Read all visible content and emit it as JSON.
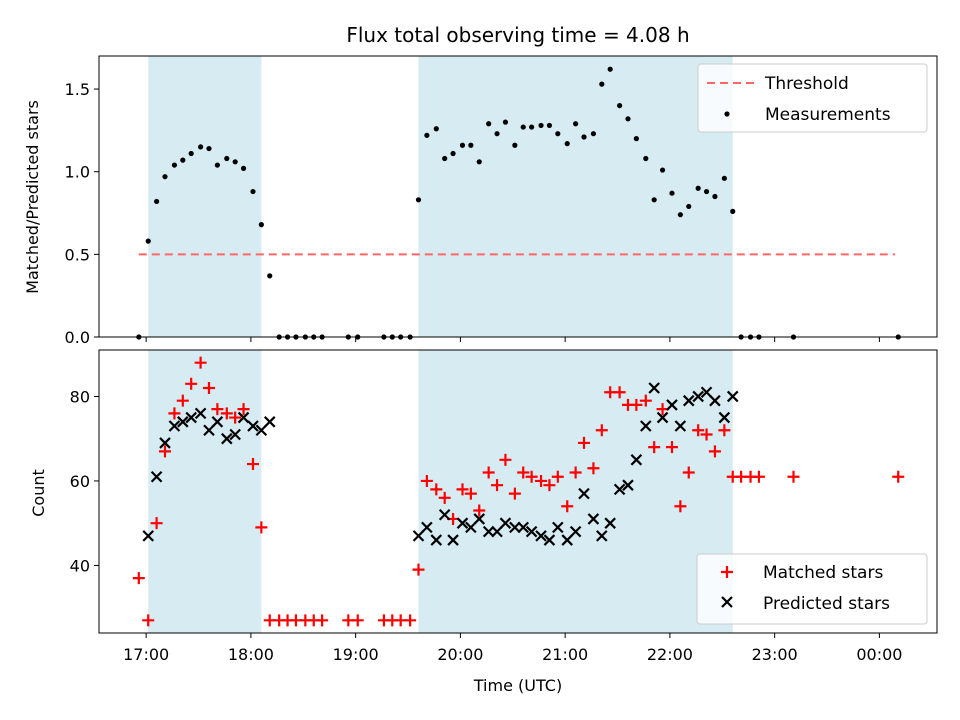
{
  "chart_data": [
    {
      "type": "scatter",
      "title": "Flux total observing time = 4.08 h",
      "xlabel": "",
      "ylabel": "Matched/Predicted stars",
      "xlim": [
        16.55,
        24.55
      ],
      "ylim": [
        0,
        1.7
      ],
      "yticks": [
        0.0,
        0.5,
        1.0,
        1.5
      ],
      "ytick_labels": [
        "0.0",
        "0.5",
        "1.0",
        "1.5"
      ],
      "legend_position": "top-right",
      "shaded_intervals": [
        [
          17.02,
          18.1
        ],
        [
          19.6,
          22.6
        ]
      ],
      "shade_color": "#add8e6",
      "series": [
        {
          "name": "Threshold",
          "type": "line",
          "style": "dashed",
          "color": "#ff6666",
          "x": [
            16.93,
            24.15
          ],
          "y": [
            0.5,
            0.5
          ]
        },
        {
          "name": "Measurements",
          "type": "scatter",
          "marker": "dot",
          "color": "#000000",
          "x": [
            16.93,
            17.02,
            17.1,
            17.18,
            17.27,
            17.35,
            17.43,
            17.52,
            17.6,
            17.68,
            17.77,
            17.85,
            17.93,
            18.02,
            18.1,
            18.18,
            18.27,
            18.35,
            18.43,
            18.52,
            18.6,
            18.68,
            18.93,
            19.02,
            19.27,
            19.35,
            19.43,
            19.52,
            19.6,
            19.68,
            19.77,
            19.85,
            19.93,
            20.02,
            20.1,
            20.18,
            20.27,
            20.35,
            20.43,
            20.52,
            20.6,
            20.68,
            20.77,
            20.85,
            20.93,
            21.02,
            21.1,
            21.18,
            21.27,
            21.35,
            21.43,
            21.52,
            21.6,
            21.68,
            21.77,
            21.85,
            21.93,
            22.02,
            22.1,
            22.18,
            22.27,
            22.35,
            22.43,
            22.52,
            22.6,
            22.68,
            22.77,
            22.85,
            23.18,
            24.18
          ],
          "y": [
            0.0,
            0.58,
            0.82,
            0.97,
            1.04,
            1.07,
            1.11,
            1.15,
            1.14,
            1.04,
            1.08,
            1.06,
            1.02,
            0.88,
            0.68,
            0.37,
            0.0,
            0.0,
            0.0,
            0.0,
            0.0,
            0.0,
            0.0,
            0.0,
            0.0,
            0.0,
            0.0,
            0.0,
            0.83,
            1.22,
            1.26,
            1.08,
            1.11,
            1.16,
            1.16,
            1.06,
            1.29,
            1.23,
            1.3,
            1.16,
            1.27,
            1.27,
            1.28,
            1.28,
            1.23,
            1.17,
            1.29,
            1.21,
            1.23,
            1.53,
            1.62,
            1.4,
            1.32,
            1.2,
            1.08,
            0.83,
            1.01,
            0.87,
            0.74,
            0.79,
            0.9,
            0.88,
            0.85,
            0.96,
            0.76,
            0.0,
            0.0,
            0.0,
            0.0,
            0.0
          ]
        }
      ]
    },
    {
      "type": "scatter",
      "title": "",
      "xlabel": "Time (UTC)",
      "ylabel": "Count",
      "xlim": [
        16.55,
        24.55
      ],
      "ylim": [
        24,
        91
      ],
      "yticks": [
        40,
        60,
        80
      ],
      "ytick_labels": [
        "40",
        "60",
        "80"
      ],
      "xticks": [
        17,
        18,
        19,
        20,
        21,
        22,
        23,
        24
      ],
      "xtick_labels": [
        "17:00",
        "18:00",
        "19:00",
        "20:00",
        "21:00",
        "22:00",
        "23:00",
        "00:00"
      ],
      "legend_position": "bottom-right",
      "shaded_intervals": [
        [
          17.02,
          18.1
        ],
        [
          19.6,
          22.6
        ]
      ],
      "shade_color": "#add8e6",
      "series": [
        {
          "name": "Matched stars",
          "type": "scatter",
          "marker": "plus",
          "color": "#ff0000",
          "x": [
            16.93,
            17.02,
            17.1,
            17.18,
            17.27,
            17.35,
            17.43,
            17.52,
            17.6,
            17.68,
            17.77,
            17.85,
            17.93,
            18.02,
            18.1,
            18.18,
            18.27,
            18.35,
            18.43,
            18.52,
            18.6,
            18.68,
            18.93,
            19.02,
            19.27,
            19.35,
            19.43,
            19.52,
            19.6,
            19.68,
            19.77,
            19.85,
            19.93,
            20.02,
            20.1,
            20.18,
            20.27,
            20.35,
            20.43,
            20.52,
            20.6,
            20.68,
            20.77,
            20.85,
            20.93,
            21.02,
            21.1,
            21.18,
            21.27,
            21.35,
            21.43,
            21.52,
            21.6,
            21.68,
            21.77,
            21.85,
            21.93,
            22.02,
            22.1,
            22.18,
            22.27,
            22.35,
            22.43,
            22.52,
            22.6,
            22.68,
            22.77,
            22.85,
            23.18,
            24.18
          ],
          "y": [
            37,
            27,
            50,
            67,
            76,
            79,
            83,
            88,
            82,
            77,
            76,
            75,
            77,
            64,
            49,
            27,
            27,
            27,
            27,
            27,
            27,
            27,
            27,
            27,
            27,
            27,
            27,
            27,
            39,
            60,
            58,
            56,
            51,
            58,
            57,
            53,
            62,
            59,
            65,
            57,
            62,
            61,
            60,
            59,
            61,
            54,
            62,
            69,
            63,
            72,
            81,
            81,
            78,
            78,
            79,
            68,
            77,
            68,
            54,
            62,
            72,
            71,
            67,
            72,
            61,
            61,
            61,
            61,
            61,
            61
          ]
        },
        {
          "name": "Predicted stars",
          "type": "scatter",
          "marker": "x",
          "color": "#000000",
          "x": [
            17.02,
            17.1,
            17.18,
            17.27,
            17.35,
            17.43,
            17.52,
            17.6,
            17.68,
            17.77,
            17.85,
            17.93,
            18.02,
            18.1,
            18.18,
            19.6,
            19.68,
            19.77,
            19.85,
            19.93,
            20.02,
            20.1,
            20.18,
            20.27,
            20.35,
            20.43,
            20.52,
            20.6,
            20.68,
            20.77,
            20.85,
            20.93,
            21.02,
            21.1,
            21.18,
            21.27,
            21.35,
            21.43,
            21.52,
            21.6,
            21.68,
            21.77,
            21.85,
            21.93,
            22.02,
            22.1,
            22.18,
            22.27,
            22.35,
            22.43,
            22.52,
            22.6
          ],
          "y": [
            47,
            61,
            69,
            73,
            74,
            75,
            76,
            72,
            74,
            70,
            71,
            75,
            73,
            72,
            74,
            47,
            49,
            46,
            52,
            46,
            50,
            49,
            51,
            48,
            48,
            50,
            49,
            49,
            48,
            47,
            46,
            49,
            46,
            48,
            57,
            51,
            47,
            50,
            58,
            59,
            65,
            73,
            82,
            75,
            78,
            73,
            79,
            80,
            81,
            79,
            75,
            80
          ]
        }
      ]
    }
  ]
}
